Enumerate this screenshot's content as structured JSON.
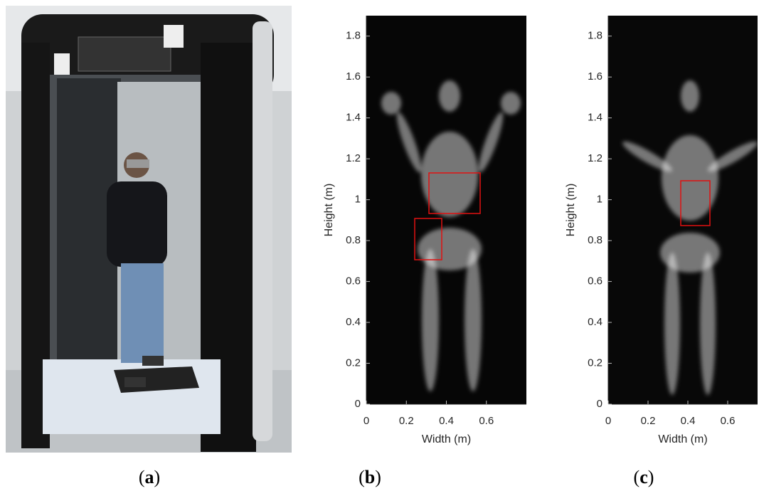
{
  "captions": [
    [
      "(",
      "a",
      ")"
    ],
    [
      "(",
      "b",
      ")"
    ],
    [
      "(",
      "c",
      ")"
    ]
  ],
  "chart_data": [
    {
      "type": "image",
      "xlabel": "Width (m)",
      "ylabel": "Height (m)",
      "xlim": [
        0,
        0.8
      ],
      "ylim": [
        0,
        1.9
      ],
      "xticks": [
        0,
        0.2,
        0.4,
        0.6
      ],
      "yticks": [
        0,
        0.2,
        0.4,
        0.6,
        0.8,
        1,
        1.2,
        1.4,
        1.6,
        1.8
      ]
    },
    {
      "type": "image",
      "xlabel": "Width (m)",
      "ylabel": "Height (m)",
      "xlim": [
        0,
        0.75
      ],
      "ylim": [
        0,
        1.9
      ],
      "xticks": [
        0,
        0.2,
        0.4,
        0.6
      ],
      "yticks": [
        0,
        0.2,
        0.4,
        0.6,
        0.8,
        1,
        1.2,
        1.4,
        1.6,
        1.8
      ]
    }
  ]
}
